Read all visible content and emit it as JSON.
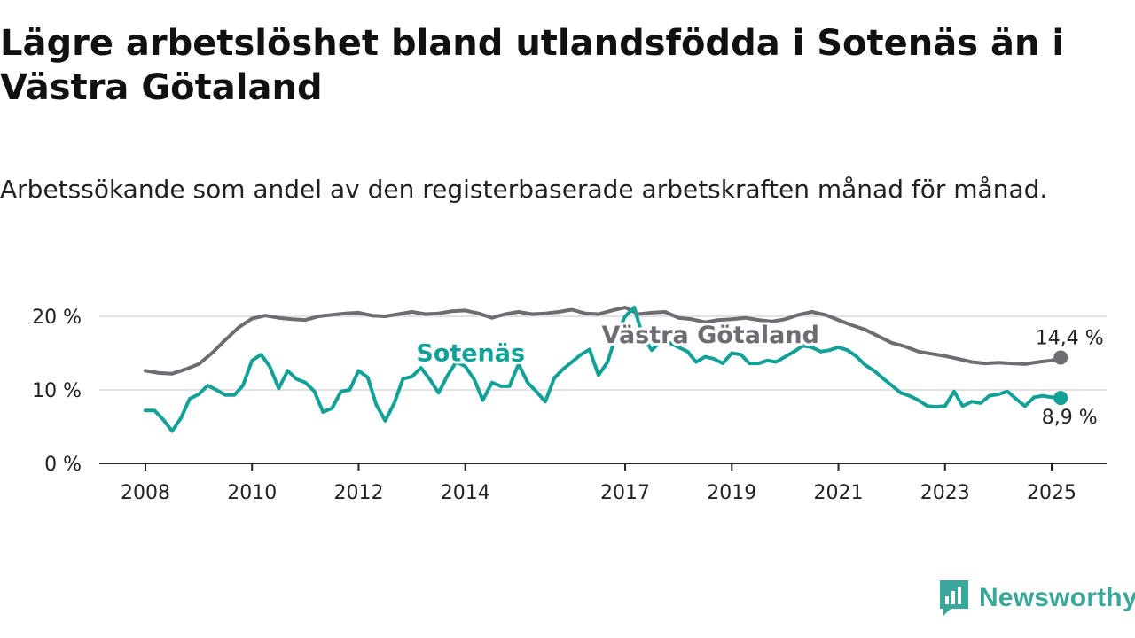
{
  "header": {
    "title": "Lägre arbetslöshet bland utlandsfödda i Sotenäs än i Västra Götaland",
    "subtitle": "Arbetssökande som andel av den registerbaserade arbetskraften månad för månad."
  },
  "brand": {
    "name": "Newsworthy",
    "icon": "newsworthy-logo-icon",
    "color": "#3aa79b"
  },
  "chart_data": {
    "type": "line",
    "x_unit": "year",
    "xlim": [
      2008,
      2025.6
    ],
    "ylim": [
      0,
      20
    ],
    "y_ticks": [
      0,
      10,
      20
    ],
    "y_tick_labels": [
      "0 %",
      "10 %",
      "20 %"
    ],
    "x_ticks": [
      2008,
      2010,
      2012,
      2014,
      2017,
      2019,
      2021,
      2023,
      2025
    ],
    "x_tick_labels": [
      "2008",
      "2010",
      "2012",
      "2014",
      "2017",
      "2019",
      "2021",
      "2023",
      "2025"
    ],
    "grid": "horizontal",
    "xlabel": "",
    "ylabel": "",
    "series": [
      {
        "name": "Västra Götaland",
        "color": "#6e6b72",
        "end_label": "14,4 %",
        "x": [
          2008.0,
          2008.25,
          2008.5,
          2008.75,
          2009.0,
          2009.25,
          2009.5,
          2009.75,
          2010.0,
          2010.25,
          2010.5,
          2010.75,
          2011.0,
          2011.25,
          2011.5,
          2011.75,
          2012.0,
          2012.25,
          2012.5,
          2012.75,
          2013.0,
          2013.25,
          2013.5,
          2013.75,
          2014.0,
          2014.25,
          2014.5,
          2014.75,
          2015.0,
          2015.25,
          2015.5,
          2015.75,
          2016.0,
          2016.25,
          2016.5,
          2016.75,
          2017.0,
          2017.25,
          2017.5,
          2017.75,
          2018.0,
          2018.25,
          2018.5,
          2018.75,
          2019.0,
          2019.25,
          2019.5,
          2019.75,
          2020.0,
          2020.25,
          2020.5,
          2020.75,
          2021.0,
          2021.25,
          2021.5,
          2021.75,
          2022.0,
          2022.25,
          2022.5,
          2022.75,
          2023.0,
          2023.25,
          2023.5,
          2023.75,
          2024.0,
          2024.25,
          2024.5,
          2024.75,
          2025.0,
          2025.17
        ],
        "values": [
          12.6,
          12.3,
          12.2,
          12.8,
          13.5,
          15.0,
          16.8,
          18.5,
          19.7,
          20.1,
          19.8,
          19.6,
          19.5,
          20.0,
          20.2,
          20.4,
          20.5,
          20.1,
          20.0,
          20.3,
          20.6,
          20.3,
          20.4,
          20.7,
          20.8,
          20.4,
          19.8,
          20.3,
          20.6,
          20.3,
          20.4,
          20.6,
          20.9,
          20.4,
          20.3,
          20.8,
          21.2,
          20.3,
          20.5,
          20.6,
          19.8,
          19.6,
          19.2,
          19.5,
          19.6,
          19.8,
          19.5,
          19.3,
          19.6,
          20.2,
          20.6,
          20.2,
          19.5,
          18.8,
          18.2,
          17.3,
          16.4,
          15.9,
          15.2,
          14.9,
          14.6,
          14.2,
          13.8,
          13.6,
          13.7,
          13.6,
          13.5,
          13.8,
          14.0,
          14.4
        ]
      },
      {
        "name": "Sotenäs",
        "color": "#13a197",
        "end_label": "8,9 %",
        "x": [
          2008.0,
          2008.17,
          2008.33,
          2008.5,
          2008.67,
          2008.83,
          2009.0,
          2009.17,
          2009.33,
          2009.5,
          2009.67,
          2009.83,
          2010.0,
          2010.17,
          2010.33,
          2010.5,
          2010.67,
          2010.83,
          2011.0,
          2011.17,
          2011.33,
          2011.5,
          2011.67,
          2011.83,
          2012.0,
          2012.17,
          2012.33,
          2012.5,
          2012.67,
          2012.83,
          2013.0,
          2013.17,
          2013.33,
          2013.5,
          2013.67,
          2013.83,
          2014.0,
          2014.17,
          2014.33,
          2014.5,
          2014.67,
          2014.83,
          2015.0,
          2015.17,
          2015.33,
          2015.5,
          2015.67,
          2015.83,
          2016.0,
          2016.17,
          2016.33,
          2016.5,
          2016.67,
          2016.83,
          2017.0,
          2017.17,
          2017.33,
          2017.5,
          2017.67,
          2017.83,
          2018.0,
          2018.17,
          2018.33,
          2018.5,
          2018.67,
          2018.83,
          2019.0,
          2019.17,
          2019.33,
          2019.5,
          2019.67,
          2019.83,
          2020.0,
          2020.17,
          2020.33,
          2020.5,
          2020.67,
          2020.83,
          2021.0,
          2021.17,
          2021.33,
          2021.5,
          2021.67,
          2021.83,
          2022.0,
          2022.17,
          2022.33,
          2022.5,
          2022.67,
          2022.83,
          2023.0,
          2023.17,
          2023.33,
          2023.5,
          2023.67,
          2023.83,
          2024.0,
          2024.17,
          2024.33,
          2024.5,
          2024.67,
          2024.83,
          2025.0,
          2025.17
        ],
        "values": [
          7.2,
          7.2,
          6.0,
          4.4,
          6.2,
          8.8,
          9.4,
          10.6,
          10.0,
          9.3,
          9.3,
          10.6,
          14.0,
          14.8,
          13.2,
          10.2,
          12.6,
          11.5,
          11.0,
          9.8,
          7.0,
          7.5,
          9.8,
          10.0,
          12.6,
          11.7,
          8.0,
          5.8,
          8.2,
          11.5,
          11.8,
          13.0,
          11.5,
          9.6,
          12.0,
          13.8,
          13.2,
          11.4,
          8.6,
          11.0,
          10.5,
          10.5,
          13.5,
          11.0,
          9.8,
          8.4,
          11.6,
          12.8,
          13.8,
          14.8,
          15.5,
          12.0,
          13.8,
          17.4,
          20.0,
          21.2,
          17.2,
          15.4,
          16.6,
          16.4,
          15.8,
          15.2,
          13.8,
          14.5,
          14.2,
          13.6,
          15.0,
          14.8,
          13.6,
          13.6,
          14.0,
          13.8,
          14.5,
          15.2,
          16.0,
          15.8,
          15.2,
          15.4,
          15.8,
          15.4,
          14.6,
          13.4,
          12.6,
          11.6,
          10.6,
          9.6,
          9.2,
          8.6,
          7.8,
          7.7,
          7.8,
          9.8,
          7.8,
          8.4,
          8.2,
          9.2,
          9.4,
          9.8,
          8.8,
          7.8,
          9.0,
          9.2,
          9.0,
          8.9
        ]
      }
    ],
    "annotations": [
      {
        "text": "Sotenäs",
        "series": "Sotenäs",
        "x": 2014.1,
        "y": 15.0
      },
      {
        "text": "Västra Götaland",
        "series": "Västra Götaland",
        "x": 2018.6,
        "y": 17.5
      }
    ]
  }
}
